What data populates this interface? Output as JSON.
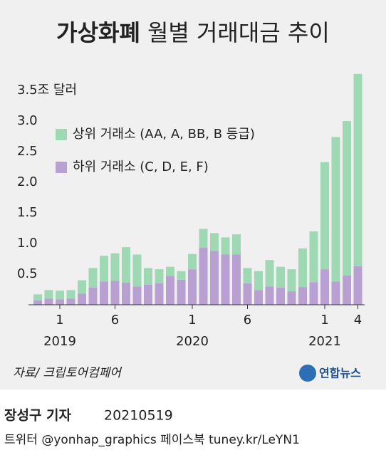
{
  "chart_data": {
    "type": "stacked_bar",
    "title_bold": "가상화폐",
    "title": "월별 거래대금 추이",
    "categories": [
      null,
      null,
      "1",
      null,
      null,
      null,
      null,
      "6",
      null,
      null,
      null,
      null,
      null,
      null,
      "1",
      null,
      null,
      null,
      null,
      "6",
      null,
      null,
      null,
      null,
      null,
      null,
      "1",
      null,
      null,
      "4"
    ],
    "year_categories": [
      null,
      null,
      "2019",
      null,
      null,
      null,
      null,
      null,
      null,
      null,
      null,
      null,
      null,
      null,
      "2020",
      null,
      null,
      null,
      null,
      null,
      null,
      null,
      null,
      null,
      null,
      null,
      "2021",
      null,
      null,
      null
    ],
    "series": [
      {
        "name": "하위 거래소 (C, D, E, F)",
        "color": "#b9a0d2",
        "values": [
          0.07,
          0.1,
          0.09,
          0.1,
          0.18,
          0.28,
          0.38,
          0.39,
          0.36,
          0.3,
          0.33,
          0.35,
          0.47,
          0.41,
          0.58,
          0.93,
          0.88,
          0.82,
          0.82,
          0.35,
          0.24,
          0.3,
          0.28,
          0.22,
          0.29,
          0.37,
          0.58,
          0.38,
          0.48,
          0.63
        ]
      },
      {
        "name": "상위 거래소 (AA, A, BB, B 등급)",
        "color": "#9fd9b4",
        "values": [
          0.1,
          0.14,
          0.14,
          0.14,
          0.22,
          0.32,
          0.42,
          0.45,
          0.58,
          0.52,
          0.27,
          0.23,
          0.15,
          0.14,
          0.25,
          0.31,
          0.29,
          0.28,
          0.33,
          0.25,
          0.31,
          0.43,
          0.34,
          0.36,
          0.63,
          0.83,
          1.75,
          2.36,
          2.52,
          3.14
        ]
      }
    ],
    "ylim": [
      0,
      3.8
    ],
    "yticks": [
      {
        "value": 0.5,
        "label": "0.5"
      },
      {
        "value": 1,
        "label": "1.0"
      },
      {
        "value": 1.5,
        "label": "1.5"
      },
      {
        "value": 2,
        "label": "2.0"
      },
      {
        "value": 2.5,
        "label": "2.5"
      },
      {
        "value": 3,
        "label": "3.0"
      },
      {
        "value": 3.5,
        "label": "3.5조 달러"
      }
    ],
    "source": "자료/ 크립토어컴페어",
    "logo": "연합뉴스",
    "byline": "장성구 기자",
    "date": "20210519",
    "social": "트위터 @yonhap_graphics  페이스북 tuney.kr/LeYN1"
  }
}
